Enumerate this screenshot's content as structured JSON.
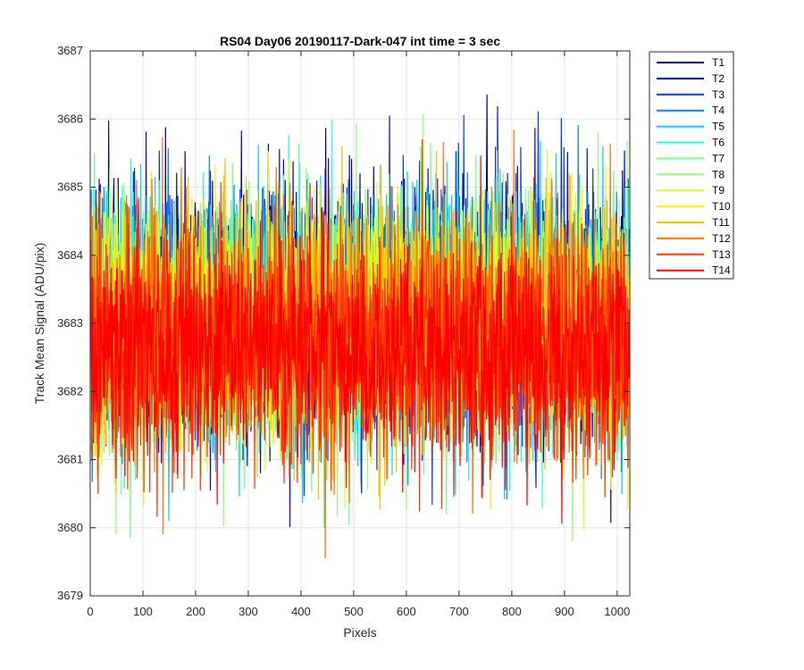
{
  "chart_data": {
    "type": "line",
    "title": "RS04 Day06 20190117-Dark-047 int time = 3 sec",
    "xlabel": "Pixels",
    "ylabel": "Track Mean Signal (ADU/pix)",
    "xlim": [
      0,
      1024
    ],
    "ylim": [
      3679,
      3687
    ],
    "xticks": [
      0,
      100,
      200,
      300,
      400,
      500,
      600,
      700,
      800,
      900,
      1000
    ],
    "yticks": [
      3679,
      3680,
      3681,
      3682,
      3683,
      3684,
      3685,
      3686,
      3687
    ],
    "grid": true,
    "legend_position": "outside-top-right",
    "x_points": 1024,
    "series": [
      {
        "name": "T1",
        "color": "#00008F",
        "mean": 3683.2,
        "spread": 0.9
      },
      {
        "name": "T2",
        "color": "#0000DF",
        "mean": 3683.2,
        "spread": 0.9
      },
      {
        "name": "T3",
        "color": "#0030FF",
        "mean": 3683.2,
        "spread": 0.9
      },
      {
        "name": "T4",
        "color": "#0080FF",
        "mean": 3683.1,
        "spread": 0.9
      },
      {
        "name": "T5",
        "color": "#00CFFF",
        "mean": 3683.1,
        "spread": 0.9
      },
      {
        "name": "T6",
        "color": "#20FFDF",
        "mean": 3683.1,
        "spread": 0.9
      },
      {
        "name": "T7",
        "color": "#70FF8F",
        "mean": 3683.0,
        "spread": 0.9
      },
      {
        "name": "T8",
        "color": "#8FFF70",
        "mean": 3683.0,
        "spread": 0.9
      },
      {
        "name": "T9",
        "color": "#CFFF30",
        "mean": 3683.0,
        "spread": 0.9
      },
      {
        "name": "T10",
        "color": "#FFEF00",
        "mean": 3683.0,
        "spread": 0.9
      },
      {
        "name": "T11",
        "color": "#FFBF00",
        "mean": 3682.9,
        "spread": 0.9
      },
      {
        "name": "T12",
        "color": "#FF7000",
        "mean": 3682.8,
        "spread": 0.9
      },
      {
        "name": "T13",
        "color": "#FF3000",
        "mean": 3682.7,
        "spread": 0.9
      },
      {
        "name": "T14",
        "color": "#FF0000",
        "mean": 3682.6,
        "spread": 0.8
      }
    ]
  }
}
